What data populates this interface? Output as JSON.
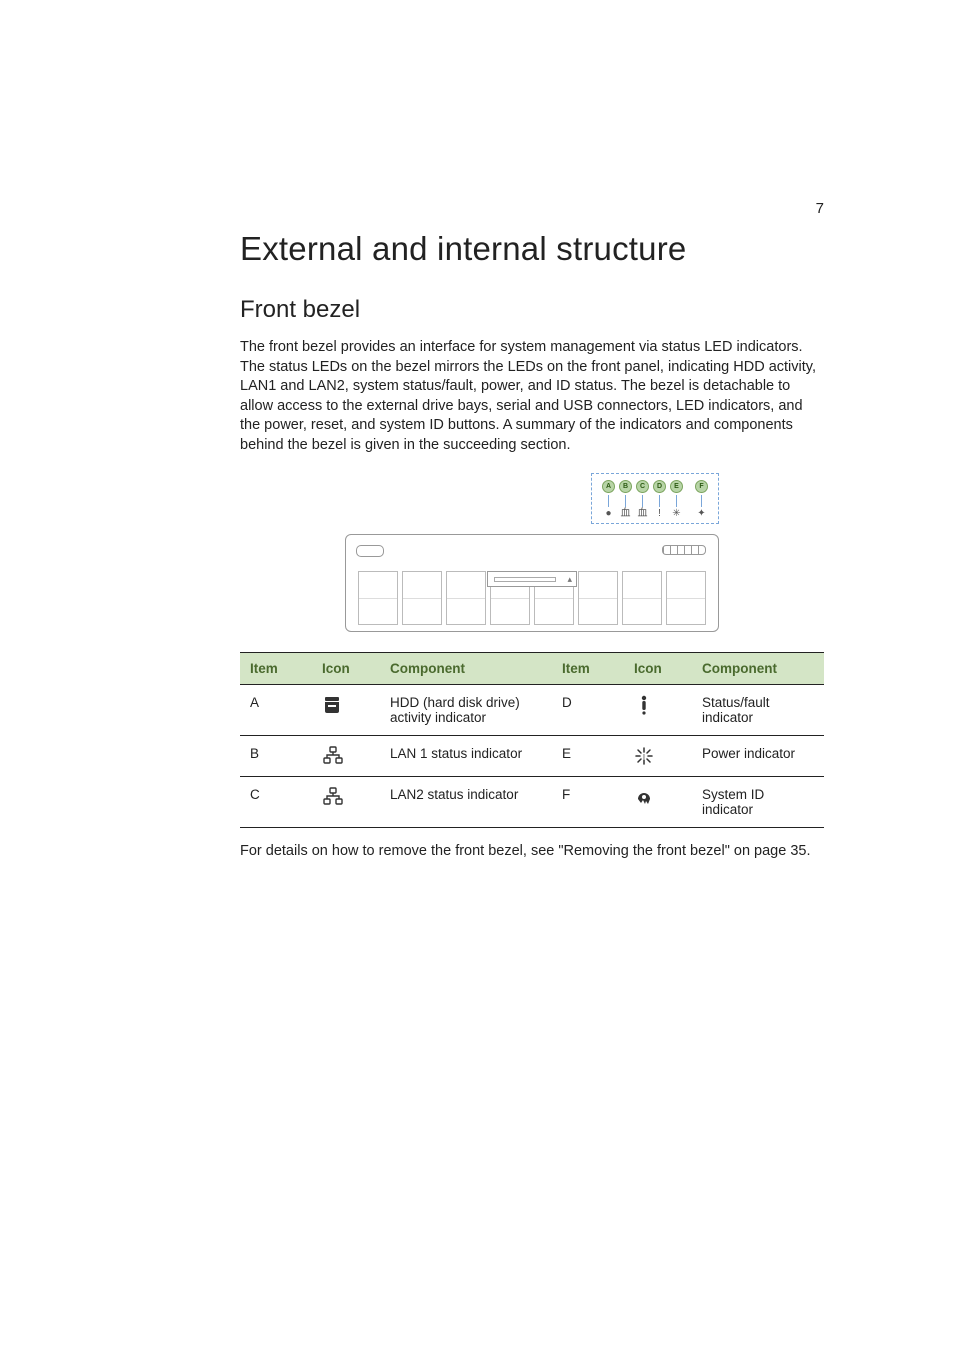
{
  "page_number": "7",
  "heading": "External and internal structure",
  "subheading": "Front bezel",
  "paragraph": "The front bezel provides an interface for system management via status LED indicators. The status LEDs on the bezel mirrors the LEDs on the front panel, indicating HDD activity, LAN1 and LAN2, system status/fault, power, and ID status. The bezel is detachable to allow access to the external drive bays, serial and USB connectors, LED indicators, and the power, reset, and system ID buttons. A summary of the indicators and components behind the bezel is given in the succeeding section.",
  "callouts": {
    "letters": [
      "A",
      "B",
      "C",
      "D",
      "E",
      "F"
    ],
    "glyphs": [
      "●",
      "⾎",
      "⾎",
      "!",
      "✳",
      "✦"
    ]
  },
  "table": {
    "headers": [
      "Item",
      "Icon",
      "Component",
      "Item",
      "Icon",
      "Component"
    ],
    "rows": [
      {
        "l_item": "A",
        "l_icon": "hdd",
        "l_comp": "HDD (hard disk drive) activity indicator",
        "r_item": "D",
        "r_icon": "fault",
        "r_comp": "Status/fault indicator"
      },
      {
        "l_item": "B",
        "l_icon": "lan",
        "l_comp": "LAN 1 status indicator",
        "r_item": "E",
        "r_icon": "power",
        "r_comp": "Power indicator"
      },
      {
        "l_item": "C",
        "l_icon": "lan",
        "l_comp": "LAN2 status indicator",
        "r_item": "F",
        "r_icon": "id",
        "r_comp": "System ID indicator"
      }
    ],
    "header_bg": "#d4e5c6",
    "header_fg": "#4a6a2e"
  },
  "footer": "For details on how to remove the front bezel, see \"Removing the front bezel\" on page 35."
}
